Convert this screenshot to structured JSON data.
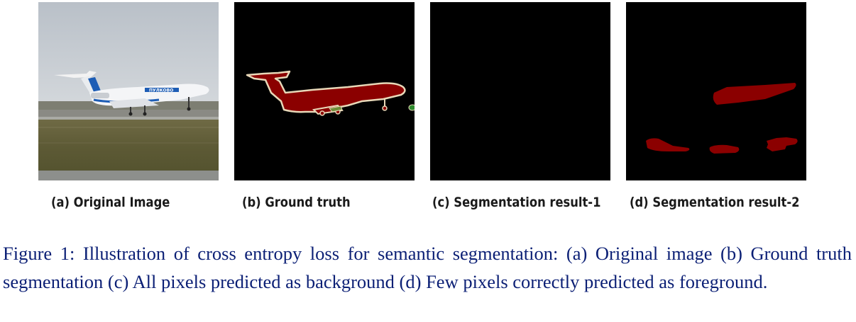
{
  "panels": [
    {
      "id": "a",
      "caption": "(a) Original Image"
    },
    {
      "id": "b",
      "caption": "(b) Ground truth"
    },
    {
      "id": "c",
      "caption": "(c) Segmentation result-1"
    },
    {
      "id": "d",
      "caption": "(d) Segmentation result-2"
    }
  ],
  "airplane_livery_text": "ПУЛКОВО",
  "colors": {
    "mask_background": "#000000",
    "airplane_class": "#8b0000",
    "ignore_boundary": "#e8d8b8",
    "secondary_class": "#2e8b2e",
    "caption_text": "#0b1f75"
  },
  "figure_caption": "Figure 1: Illustration of cross entropy loss for semantic segmentation: (a) Original image (b) Ground truth segmentation (c) All pixels predicted as background (d) Few pixels correctly predicted as foreground."
}
